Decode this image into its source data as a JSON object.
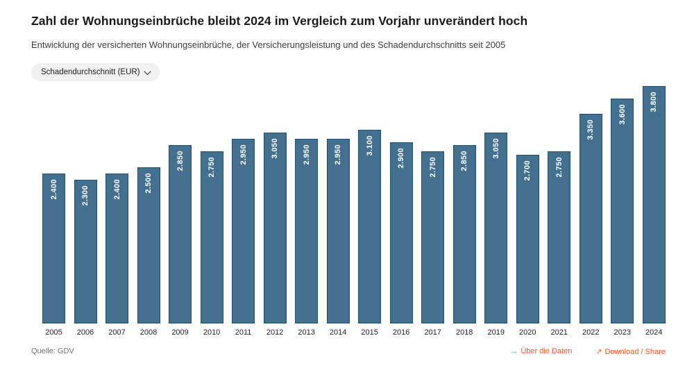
{
  "header": {
    "title": "Zahl der Wohnungseinbrüche bleibt 2024 im Vergleich zum Vorjahr unverändert hoch",
    "subtitle": "Entwicklung der versicherten Wohnungseinbrüche, der Versicherungsleistung und des Schadendurchschnitts seit 2005"
  },
  "controls": {
    "dropdown_label": "Schadendurchschnitt (EUR)"
  },
  "chart_data": {
    "type": "bar",
    "title": "Schadendurchschnitt (EUR)",
    "xlabel": "",
    "ylabel": "",
    "ylim": [
      0,
      3800
    ],
    "grid": false,
    "legend": "none",
    "categories": [
      "2005",
      "2006",
      "2007",
      "2008",
      "2009",
      "2010",
      "2011",
      "2012",
      "2013",
      "2014",
      "2015",
      "2016",
      "2017",
      "2018",
      "2019",
      "2020",
      "2021",
      "2022",
      "2023",
      "2024"
    ],
    "values": [
      2400,
      2300,
      2400,
      2500,
      2850,
      2750,
      2950,
      3050,
      2950,
      2950,
      3100,
      2900,
      2750,
      2850,
      3050,
      2700,
      2750,
      3350,
      3600,
      3800
    ],
    "bar_labels": [
      "2.400",
      "2.300",
      "2.400",
      "2.500",
      "2.850",
      "2.750",
      "2.950",
      "3.050",
      "2.950",
      "2.950",
      "3.100",
      "2.900",
      "2.750",
      "2.850",
      "3.050",
      "2.700",
      "2.750",
      "3.350",
      "3.600",
      "3.800"
    ]
  },
  "footer": {
    "source": "Quelle: GDV",
    "about_link": {
      "icon": "→",
      "label": "Über die Daten"
    },
    "download_link": {
      "icon": "↗",
      "label": "Download / Share"
    }
  },
  "colors": {
    "bar_fill": "#44708f",
    "bar_border": "#17507c",
    "bar_label": "#ffffff",
    "accent_orange": "#f9571d",
    "title_text": "#1a1a1a",
    "subtitle_text": "#3c3c3c",
    "source_text": "#6f6f6f",
    "pill_bg": "#f1f1f1"
  }
}
